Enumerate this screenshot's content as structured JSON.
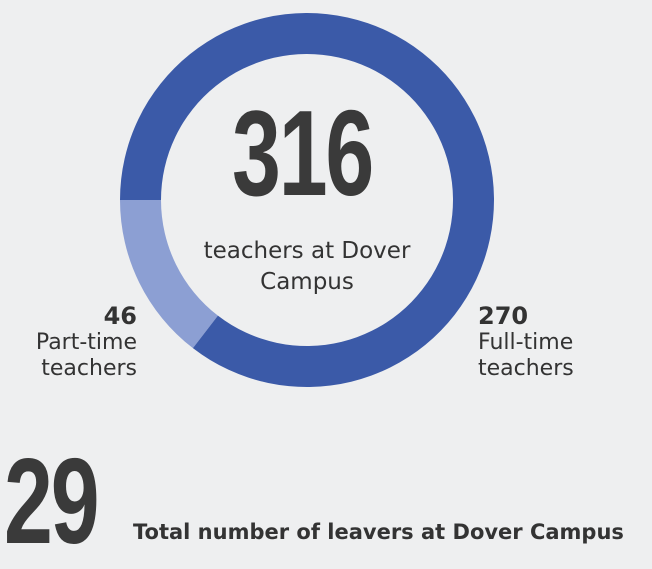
{
  "chart_data": {
    "type": "donut",
    "center_value": 316,
    "center_label": "teachers at Dover Campus",
    "categories": [
      "Part-time teachers",
      "Full-time teachers"
    ],
    "values": [
      46,
      270
    ],
    "colors": [
      "#8c9fd3",
      "#3b5aa8"
    ]
  },
  "leavers": {
    "value": 29,
    "label": "Total number of leavers at Dover Campus"
  }
}
